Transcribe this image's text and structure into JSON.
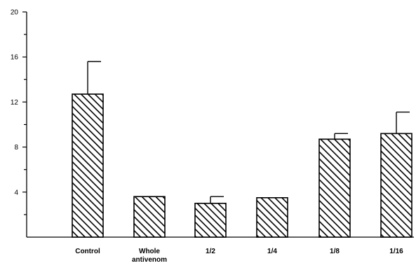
{
  "chart_data": {
    "type": "bar",
    "categories": [
      [
        "Control"
      ],
      [
        "Whole",
        "antivenom"
      ],
      [
        "1/2"
      ],
      [
        "1/4"
      ],
      [
        "1/8"
      ],
      [
        "1/16"
      ]
    ],
    "values": [
      12.7,
      3.6,
      3.0,
      3.5,
      8.7,
      9.2
    ],
    "error_upper": [
      15.6,
      3.6,
      3.6,
      3.5,
      9.2,
      11.1
    ],
    "title": "",
    "xlabel": "",
    "ylabel": "",
    "ylim": [
      0,
      20
    ],
    "y_ticks": [
      4,
      8,
      12,
      16,
      20
    ],
    "y_minor_ticks": [
      2,
      6,
      10,
      14,
      18
    ],
    "grid": false,
    "bar_fill": "hatched",
    "colors": {
      "bar_stroke": "#000000",
      "hatch": "#000000",
      "background": "#ffffff"
    }
  }
}
